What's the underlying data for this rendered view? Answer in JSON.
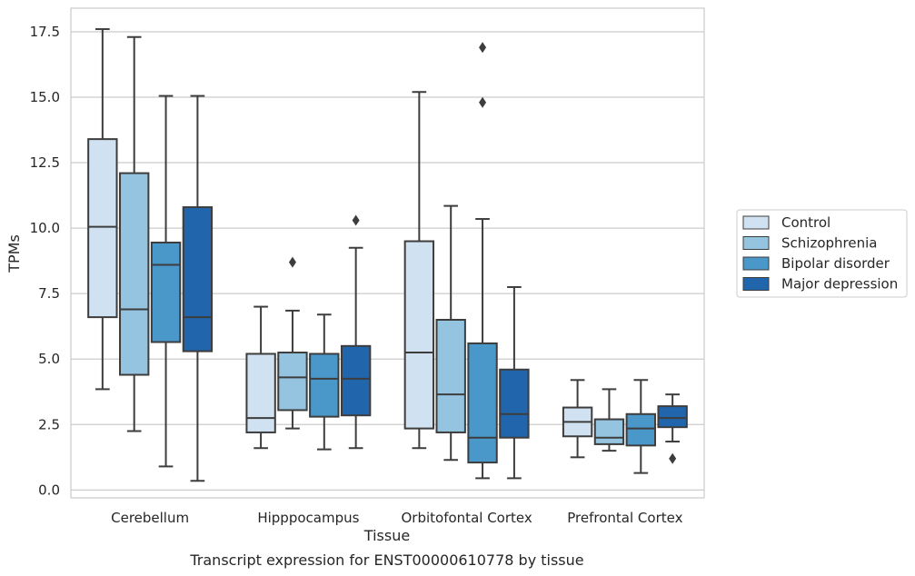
{
  "chart_data": {
    "type": "box",
    "xlabel": "Tissue",
    "ylabel": "TPMs",
    "caption": "Transcript expression for ENST00000610778 by tissue",
    "ylim": [
      -0.3,
      18.4
    ],
    "yticks": [
      0.0,
      2.5,
      5.0,
      7.5,
      10.0,
      12.5,
      15.0,
      17.5
    ],
    "ytick_labels": [
      "0.0",
      "2.5",
      "5.0",
      "7.5",
      "10.0",
      "12.5",
      "15.0",
      "17.5"
    ],
    "grid": "horizontal",
    "legend_placement": "right",
    "categories": [
      "Cerebellum",
      "Hipppocampus",
      "Orbitofontal Cortex",
      "Prefrontal Cortex"
    ],
    "series": [
      {
        "name": "Control",
        "color": "#d0e1f2",
        "boxes": [
          {
            "whislo": 3.85,
            "q1": 6.6,
            "med": 10.05,
            "q3": 13.4,
            "whishi": 17.6,
            "fliers": []
          },
          {
            "whislo": 1.6,
            "q1": 2.2,
            "med": 2.75,
            "q3": 5.2,
            "whishi": 7.0,
            "fliers": []
          },
          {
            "whislo": 1.6,
            "q1": 2.35,
            "med": 5.25,
            "q3": 9.5,
            "whishi": 15.2,
            "fliers": []
          },
          {
            "whislo": 1.25,
            "q1": 2.05,
            "med": 2.6,
            "q3": 3.15,
            "whishi": 4.2,
            "fliers": []
          }
        ]
      },
      {
        "name": "Schizophrenia",
        "color": "#94c4df",
        "boxes": [
          {
            "whislo": 2.25,
            "q1": 4.4,
            "med": 6.9,
            "q3": 12.1,
            "whishi": 17.3,
            "fliers": []
          },
          {
            "whislo": 2.35,
            "q1": 3.05,
            "med": 4.3,
            "q3": 5.25,
            "whishi": 6.85,
            "fliers": [
              8.7
            ]
          },
          {
            "whislo": 1.15,
            "q1": 2.2,
            "med": 3.65,
            "q3": 6.5,
            "whishi": 10.85,
            "fliers": []
          },
          {
            "whislo": 1.5,
            "q1": 1.75,
            "med": 2.0,
            "q3": 2.7,
            "whishi": 3.85,
            "fliers": []
          }
        ]
      },
      {
        "name": "Bipolar disorder",
        "color": "#4a98c9",
        "boxes": [
          {
            "whislo": 0.9,
            "q1": 5.65,
            "med": 8.6,
            "q3": 9.45,
            "whishi": 15.05,
            "fliers": []
          },
          {
            "whislo": 1.55,
            "q1": 2.8,
            "med": 4.25,
            "q3": 5.2,
            "whishi": 6.7,
            "fliers": []
          },
          {
            "whislo": 0.45,
            "q1": 1.05,
            "med": 2.0,
            "q3": 5.6,
            "whishi": 10.35,
            "fliers": [
              14.8,
              16.9
            ]
          },
          {
            "whislo": 0.65,
            "q1": 1.7,
            "med": 2.35,
            "q3": 2.9,
            "whishi": 4.2,
            "fliers": []
          }
        ]
      },
      {
        "name": "Major depression",
        "color": "#2166ac",
        "boxes": [
          {
            "whislo": 0.35,
            "q1": 5.3,
            "med": 6.6,
            "q3": 10.8,
            "whishi": 15.05,
            "fliers": []
          },
          {
            "whislo": 1.6,
            "q1": 2.85,
            "med": 4.25,
            "q3": 5.5,
            "whishi": 9.25,
            "fliers": [
              10.3
            ]
          },
          {
            "whislo": 0.45,
            "q1": 2.0,
            "med": 2.9,
            "q3": 4.6,
            "whishi": 7.75,
            "fliers": []
          },
          {
            "whislo": 1.85,
            "q1": 2.4,
            "med": 2.75,
            "q3": 3.2,
            "whishi": 3.65,
            "fliers": [
              1.2
            ]
          }
        ]
      }
    ]
  }
}
